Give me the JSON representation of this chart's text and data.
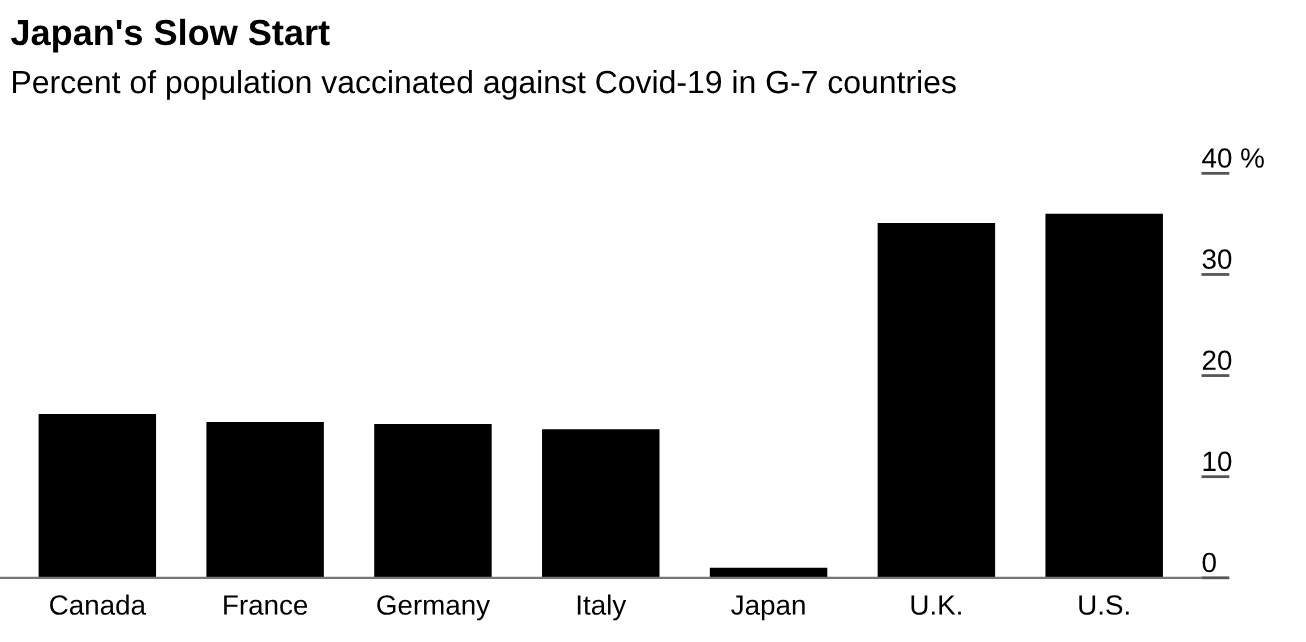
{
  "chart_data": {
    "type": "bar",
    "title": "Japan's Slow Start",
    "subtitle": "Percent of population vaccinated against Covid-19 in G-7 countries",
    "categories": [
      "Canada",
      "France",
      "Germany",
      "Italy",
      "Japan",
      "U.K.",
      "U.S."
    ],
    "values": [
      16.2,
      15.4,
      15.2,
      14.7,
      1.0,
      35.1,
      36.0
    ],
    "color": "#000000",
    "ylim": [
      0,
      40
    ],
    "yticks": [
      0,
      10,
      20,
      30,
      {
        "value": 40,
        "label": "40 %"
      }
    ],
    "grid": false,
    "legend": false
  }
}
